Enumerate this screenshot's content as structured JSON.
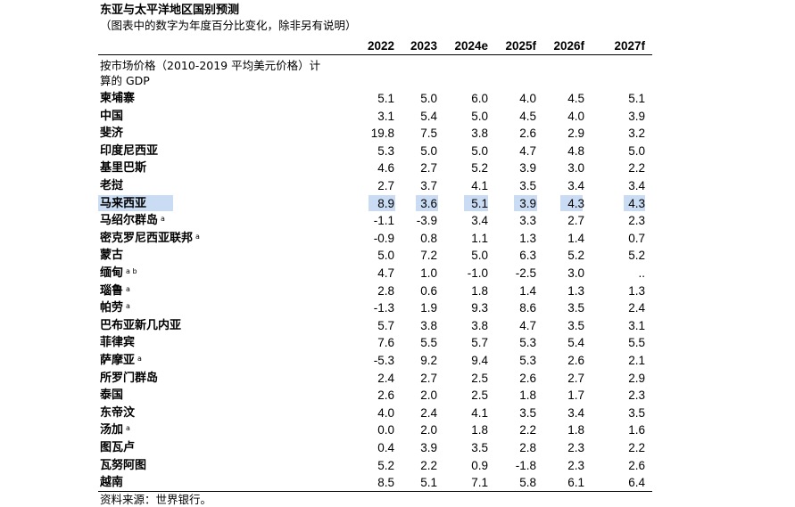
{
  "title": "东亚与太平洋地区国别预测",
  "subtitle": "（图表中的数字为年度百分比变化，除非另有说明）",
  "columns": [
    "2022",
    "2023",
    "2024e",
    "2025f",
    "2026f",
    "2027f"
  ],
  "section_label_line1": "按市场价格（2010-2019 平均美元价格）计",
  "section_label_line2": "算的 GDP",
  "highlight_color": "#c9dcf3",
  "rows": [
    {
      "name": "柬埔寨",
      "note": "",
      "values": [
        "5.1",
        "5.0",
        "6.0",
        "4.0",
        "4.5",
        "5.1"
      ],
      "highlighted": false
    },
    {
      "name": "中国",
      "note": "",
      "values": [
        "3.1",
        "5.4",
        "5.0",
        "4.5",
        "4.0",
        "3.9"
      ],
      "highlighted": false
    },
    {
      "name": "斐济",
      "note": "",
      "values": [
        "19.8",
        "7.5",
        "3.8",
        "2.6",
        "2.9",
        "3.2"
      ],
      "highlighted": false
    },
    {
      "name": "印度尼西亚",
      "note": "",
      "values": [
        "5.3",
        "5.0",
        "5.0",
        "4.7",
        "4.8",
        "5.0"
      ],
      "highlighted": false
    },
    {
      "name": "基里巴斯",
      "note": "",
      "values": [
        "4.6",
        "2.7",
        "5.2",
        "3.9",
        "3.0",
        "2.2"
      ],
      "highlighted": false
    },
    {
      "name": "老挝",
      "note": "",
      "values": [
        "2.7",
        "3.7",
        "4.1",
        "3.5",
        "3.4",
        "3.4"
      ],
      "highlighted": false
    },
    {
      "name": "马来西亚",
      "note": "",
      "values": [
        "8.9",
        "3.6",
        "5.1",
        "3.9",
        "4.3",
        "4.3"
      ],
      "highlighted": true
    },
    {
      "name": "马绍尔群岛",
      "note": "a",
      "values": [
        "-1.1",
        "-3.9",
        "3.4",
        "3.3",
        "2.7",
        "2.3"
      ],
      "highlighted": false
    },
    {
      "name": "密克罗尼西亚联邦",
      "note": "a",
      "values": [
        "-0.9",
        "0.8",
        "1.1",
        "1.3",
        "1.4",
        "0.7"
      ],
      "highlighted": false
    },
    {
      "name": "蒙古",
      "note": "",
      "values": [
        "5.0",
        "7.2",
        "5.0",
        "6.3",
        "5.2",
        "5.2"
      ],
      "highlighted": false
    },
    {
      "name": "缅甸",
      "note": "a b",
      "values": [
        "4.7",
        "1.0",
        "-1.0",
        "-2.5",
        "3.0",
        ".."
      ],
      "highlighted": false
    },
    {
      "name": "瑙鲁",
      "note": "a",
      "values": [
        "2.8",
        "0.6",
        "1.8",
        "1.4",
        "1.3",
        "1.3"
      ],
      "highlighted": false
    },
    {
      "name": "帕劳",
      "note": "a",
      "values": [
        "-1.3",
        "1.9",
        "9.3",
        "8.6",
        "3.5",
        "2.4"
      ],
      "highlighted": false
    },
    {
      "name": "巴布亚新几内亚",
      "note": "",
      "values": [
        "5.7",
        "3.8",
        "3.8",
        "4.7",
        "3.5",
        "3.1"
      ],
      "highlighted": false
    },
    {
      "name": "菲律宾",
      "note": "",
      "values": [
        "7.6",
        "5.5",
        "5.7",
        "5.3",
        "5.4",
        "5.5"
      ],
      "highlighted": false
    },
    {
      "name": "萨摩亚",
      "note": "a",
      "values": [
        "-5.3",
        "9.2",
        "9.4",
        "5.3",
        "2.6",
        "2.1"
      ],
      "highlighted": false
    },
    {
      "name": "所罗门群岛",
      "note": "",
      "values": [
        "2.4",
        "2.7",
        "2.5",
        "2.6",
        "2.7",
        "2.9"
      ],
      "highlighted": false
    },
    {
      "name": "泰国",
      "note": "",
      "values": [
        "2.6",
        "2.0",
        "2.5",
        "1.8",
        "1.7",
        "2.3"
      ],
      "highlighted": false
    },
    {
      "name": "东帝汶",
      "note": "",
      "values": [
        "4.0",
        "2.4",
        "4.1",
        "3.5",
        "3.4",
        "3.5"
      ],
      "highlighted": false
    },
    {
      "name": "汤加",
      "note": "a",
      "values": [
        "0.0",
        "2.0",
        "1.8",
        "2.2",
        "1.8",
        "1.6"
      ],
      "highlighted": false
    },
    {
      "name": "图瓦卢",
      "note": "",
      "values": [
        "0.4",
        "3.9",
        "3.5",
        "2.8",
        "2.3",
        "2.2"
      ],
      "highlighted": false
    },
    {
      "name": "瓦努阿图",
      "note": "",
      "values": [
        "5.2",
        "2.2",
        "0.9",
        "-1.8",
        "2.3",
        "2.6"
      ],
      "highlighted": false
    },
    {
      "name": "越南",
      "note": "",
      "values": [
        "8.5",
        "5.1",
        "7.1",
        "5.8",
        "6.1",
        "6.4"
      ],
      "highlighted": false
    }
  ],
  "footer": "资料来源：世界银行。"
}
